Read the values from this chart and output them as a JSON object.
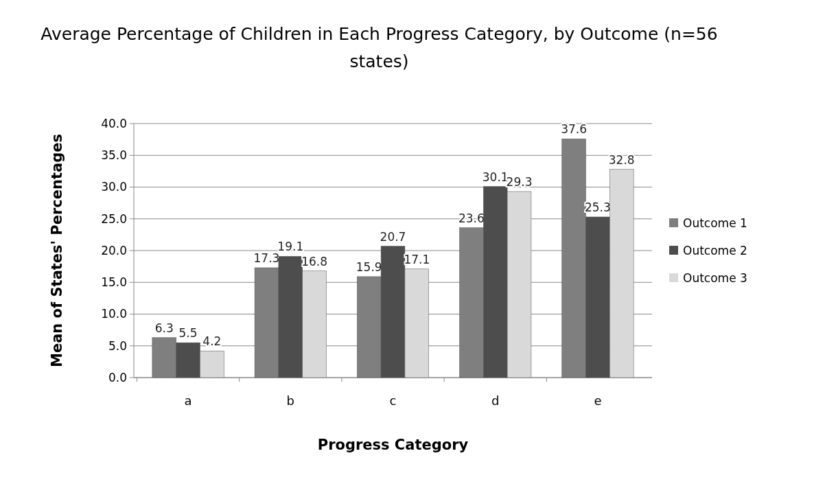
{
  "chart_data": {
    "type": "bar",
    "title": "Average Percentage of Children in Each Progress Category, by Outcome (n=56 states)",
    "xlabel": "Progress Category",
    "ylabel": "Mean of States' Percentages",
    "categories": [
      "a",
      "b",
      "c",
      "d",
      "e"
    ],
    "series": [
      {
        "name": "Outcome 1",
        "color": "#7f7f7f",
        "values": [
          6.3,
          17.3,
          15.9,
          23.6,
          37.6
        ]
      },
      {
        "name": "Outcome 2",
        "color": "#4d4d4d",
        "values": [
          5.5,
          19.1,
          20.7,
          30.1,
          25.3
        ]
      },
      {
        "name": "Outcome 3",
        "color": "#d9d9d9",
        "values": [
          4.2,
          16.8,
          17.1,
          29.3,
          32.8
        ]
      }
    ],
    "ylim": [
      0,
      40
    ],
    "yticks": [
      {
        "value": 0,
        "label": "0.0"
      },
      {
        "value": 5,
        "label": "5.0"
      },
      {
        "value": 10,
        "label": "10.0"
      },
      {
        "value": 15,
        "label": "15.0"
      },
      {
        "value": 20,
        "label": "20.0"
      },
      {
        "value": 25,
        "label": "25.0"
      },
      {
        "value": 30,
        "label": "30.0"
      },
      {
        "value": 35,
        "label": "35.0"
      },
      {
        "value": 40,
        "label": "40.0"
      }
    ],
    "grid": "y",
    "legend": "right",
    "data_labels": true
  }
}
